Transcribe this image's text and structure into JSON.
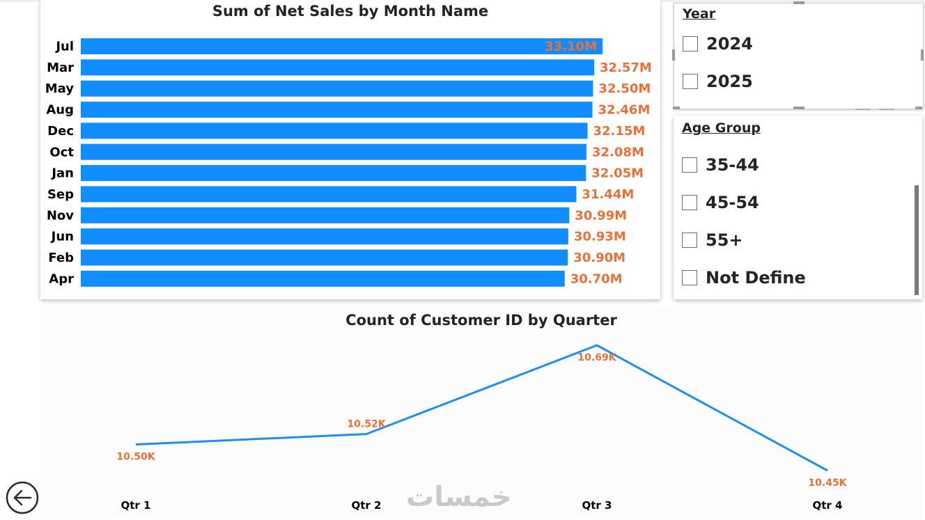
{
  "colors": {
    "bar": "#118dff",
    "line": "#1f8ef0",
    "data_label": "#e8703a",
    "title": "#252423"
  },
  "bar_chart": {
    "title": "Sum of Net Sales by Month Name"
  },
  "line_chart": {
    "title": "Count of Customer ID by Quarter"
  },
  "chart_data": [
    {
      "type": "bar",
      "orientation": "horizontal",
      "title": "Sum of Net Sales by Month Name",
      "categories": [
        "Jul",
        "Mar",
        "May",
        "Aug",
        "Dec",
        "Oct",
        "Jan",
        "Sep",
        "Nov",
        "Jun",
        "Feb",
        "Apr"
      ],
      "values": [
        33.1,
        32.57,
        32.5,
        32.46,
        32.15,
        32.08,
        32.05,
        31.44,
        30.99,
        30.93,
        30.9,
        30.7
      ],
      "value_labels": [
        "33.10M",
        "32.57M",
        "32.50M",
        "32.46M",
        "32.15M",
        "32.08M",
        "32.05M",
        "31.44M",
        "30.99M",
        "30.93M",
        "30.90M",
        "30.70M"
      ],
      "unit": "M",
      "xlim": [
        0,
        34
      ],
      "grid": false,
      "legend": "none"
    },
    {
      "type": "line",
      "title": "Count of Customer ID by Quarter",
      "categories": [
        "Qtr 1",
        "Qtr 2",
        "Qtr 3",
        "Qtr 4"
      ],
      "values": [
        10.5,
        10.52,
        10.69,
        10.45
      ],
      "value_labels": [
        "10.50K",
        "10.52K",
        "10.69K",
        "10.45K"
      ],
      "unit": "K",
      "grid": false,
      "legend": "none"
    }
  ],
  "year_slicer": {
    "title": "Year",
    "items": [
      {
        "label": "2024",
        "checked": false
      },
      {
        "label": "2025",
        "checked": false
      }
    ]
  },
  "age_slicer": {
    "title": "Age Group",
    "items": [
      {
        "label": "35-44",
        "checked": false
      },
      {
        "label": "45-54",
        "checked": false
      },
      {
        "label": "55+",
        "checked": false
      },
      {
        "label": "Not Define",
        "checked": false
      }
    ]
  },
  "watermark": {
    "text": "خمسات"
  },
  "icons": {
    "back": "back-arrow-icon"
  }
}
